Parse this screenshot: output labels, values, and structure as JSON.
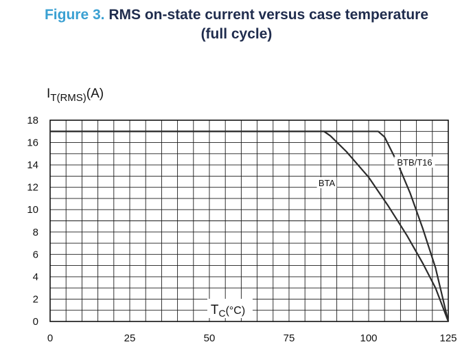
{
  "figure": {
    "number_label": "Figure 3.",
    "title_line1": "RMS on-state current versus case temperature",
    "title_line2": "(full cycle)"
  },
  "axes": {
    "y_main": "I",
    "y_sub": "T(RMS)",
    "y_unit": "(A)",
    "x_main": "T",
    "x_sub": "C",
    "x_unit": "(°C)"
  },
  "chart_data": {
    "type": "line",
    "title": "RMS on-state current versus case temperature (full cycle)",
    "xlabel": "Tc(°C)",
    "ylabel": "IT(RMS)(A)",
    "xlim": [
      0,
      125
    ],
    "ylim": [
      0,
      18
    ],
    "x_ticks": [
      0,
      25,
      50,
      75,
      100,
      125
    ],
    "y_ticks": [
      0,
      2,
      4,
      6,
      8,
      10,
      12,
      14,
      16,
      18
    ],
    "grid": true,
    "series": [
      {
        "name": "BTA",
        "points": [
          [
            0,
            17
          ],
          [
            86,
            17
          ],
          [
            88,
            16.6
          ],
          [
            93,
            15.2
          ],
          [
            100,
            12.9
          ],
          [
            106,
            10.4
          ],
          [
            112,
            7.7
          ],
          [
            117,
            5.2
          ],
          [
            121,
            3.0
          ],
          [
            125,
            0
          ]
        ]
      },
      {
        "name": "BTB/T16",
        "points": [
          [
            0,
            17
          ],
          [
            103,
            17
          ],
          [
            105,
            16.5
          ],
          [
            109,
            14.2
          ],
          [
            113,
            11.5
          ],
          [
            117,
            8.3
          ],
          [
            121,
            4.8
          ],
          [
            125,
            0
          ]
        ]
      }
    ]
  },
  "colors": {
    "figure_label": "#3aa0d2",
    "title": "#1f2c4d",
    "line": "#2b2b2b",
    "grid": "#1a1a1a"
  }
}
